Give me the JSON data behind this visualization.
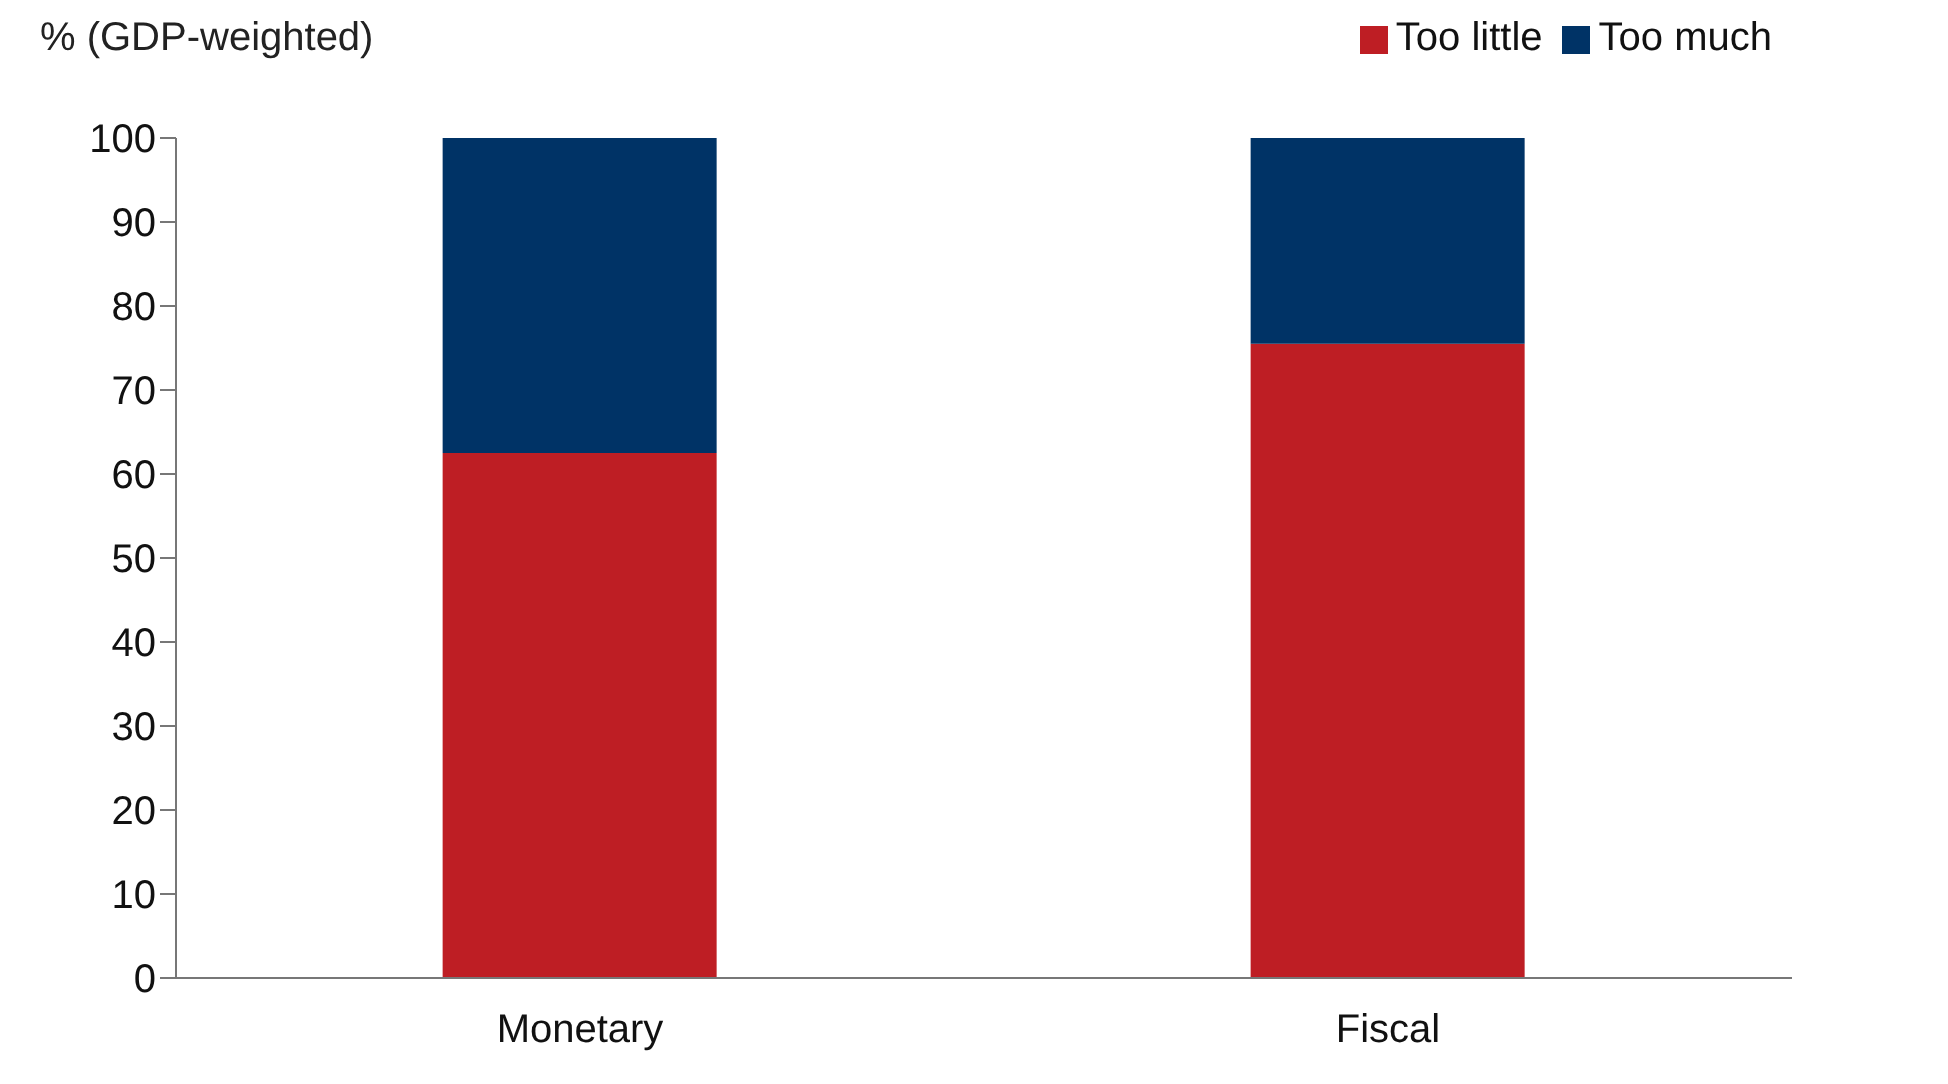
{
  "chart_data": {
    "type": "bar",
    "ylabel": "% (GDP-weighted)",
    "categories": [
      "Monetary",
      "Fiscal"
    ],
    "stacked": true,
    "series": [
      {
        "name": "Too little",
        "color": "#be1e24",
        "values": [
          62.5,
          75.5
        ]
      },
      {
        "name": "Too much",
        "color": "#003366",
        "values": [
          37.5,
          24.5
        ]
      }
    ],
    "ylim": [
      0,
      100
    ],
    "yticks": [
      0,
      10,
      20,
      30,
      40,
      50,
      60,
      70,
      80,
      90,
      100
    ],
    "grid": false,
    "legend": "top right"
  }
}
